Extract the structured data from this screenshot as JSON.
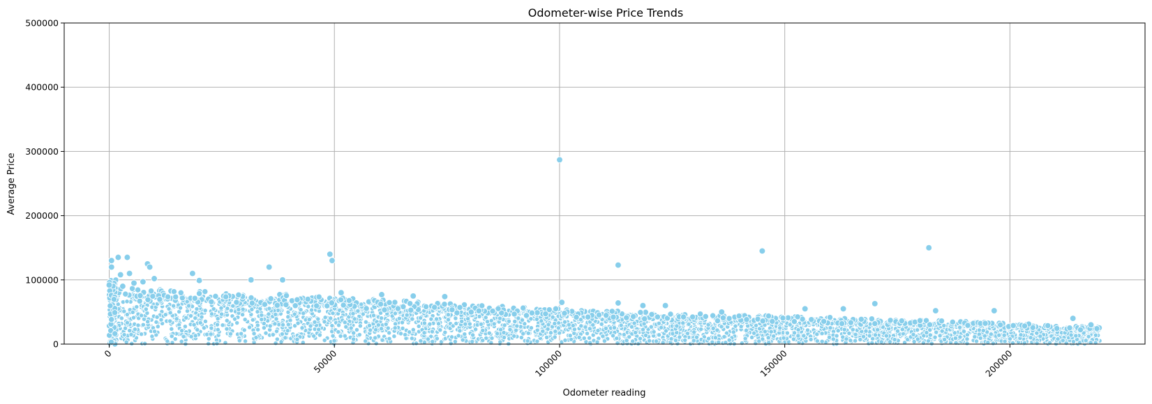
{
  "chart_data": {
    "type": "scatter",
    "title": "Odometer-wise Price Trends",
    "xlabel": "Odometer reading",
    "ylabel": "Average Price",
    "xlim": [
      -10000,
      230000
    ],
    "ylim": [
      0,
      500000
    ],
    "x_ticks": [
      0,
      50000,
      100000,
      150000,
      200000
    ],
    "y_ticks": [
      0,
      100000,
      200000,
      300000,
      400000,
      500000
    ],
    "x_tick_rotation": 45,
    "grid": true,
    "marker_color": "#87ceeb",
    "marker_edge_color": "#ffffff",
    "x_max_observed": 220000,
    "outliers": [
      {
        "x": 100000,
        "y": 287000
      },
      {
        "x": 182000,
        "y": 150000
      },
      {
        "x": 145000,
        "y": 145000
      },
      {
        "x": 49000,
        "y": 140000
      },
      {
        "x": 49500,
        "y": 130000
      },
      {
        "x": 2000,
        "y": 135000
      },
      {
        "x": 4000,
        "y": 135000
      },
      {
        "x": 500,
        "y": 130000
      },
      {
        "x": 8500,
        "y": 125000
      },
      {
        "x": 113000,
        "y": 123000
      },
      {
        "x": 35500,
        "y": 120000
      },
      {
        "x": 9000,
        "y": 120000
      },
      {
        "x": 500,
        "y": 120000
      },
      {
        "x": 18500,
        "y": 110000
      },
      {
        "x": 4500,
        "y": 110000
      },
      {
        "x": 2500,
        "y": 108000
      },
      {
        "x": 31500,
        "y": 100000
      },
      {
        "x": 38500,
        "y": 100000
      },
      {
        "x": 10000,
        "y": 102000
      },
      {
        "x": 20000,
        "y": 99000
      },
      {
        "x": 7500,
        "y": 97000
      },
      {
        "x": 5500,
        "y": 95000
      },
      {
        "x": 0,
        "y": 92000
      },
      {
        "x": 3000,
        "y": 90000
      },
      {
        "x": 51500,
        "y": 80000
      },
      {
        "x": 74500,
        "y": 74000
      },
      {
        "x": 67500,
        "y": 75000
      },
      {
        "x": 60500,
        "y": 77000
      },
      {
        "x": 100500,
        "y": 65000
      },
      {
        "x": 113000,
        "y": 64000
      },
      {
        "x": 170000,
        "y": 63000
      },
      {
        "x": 123500,
        "y": 60000
      },
      {
        "x": 118500,
        "y": 60000
      },
      {
        "x": 163000,
        "y": 55000
      },
      {
        "x": 154500,
        "y": 55000
      },
      {
        "x": 196500,
        "y": 52000
      },
      {
        "x": 183500,
        "y": 52000
      },
      {
        "x": 136000,
        "y": 50000
      },
      {
        "x": 214000,
        "y": 40000
      },
      {
        "x": 218000,
        "y": 30000
      }
    ],
    "trend": [
      {
        "x": 0,
        "y": 80000
      },
      {
        "x": 20000,
        "y": 76000
      },
      {
        "x": 40000,
        "y": 70000
      },
      {
        "x": 60000,
        "y": 63000
      },
      {
        "x": 80000,
        "y": 56000
      },
      {
        "x": 100000,
        "y": 50000
      },
      {
        "x": 120000,
        "y": 45000
      },
      {
        "x": 140000,
        "y": 41000
      },
      {
        "x": 160000,
        "y": 38000
      },
      {
        "x": 180000,
        "y": 34000
      },
      {
        "x": 200000,
        "y": 30000
      },
      {
        "x": 220000,
        "y": 24000
      }
    ]
  }
}
